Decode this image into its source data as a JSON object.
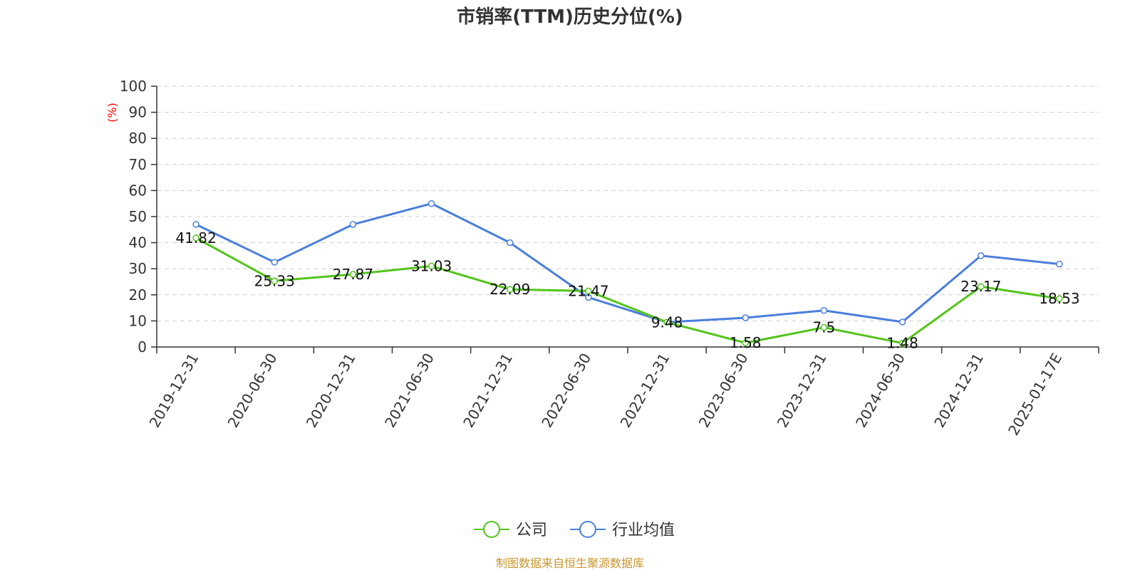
{
  "chart_data": {
    "type": "line",
    "title": "市销率(TTM)历史分位(%)",
    "ylabel": "(%)",
    "ylim": [
      0,
      100
    ],
    "yticks": [
      0,
      10,
      20,
      30,
      40,
      50,
      60,
      70,
      80,
      90,
      100
    ],
    "grid": true,
    "legend_position": "bottom",
    "categories": [
      "2019-12-31",
      "2020-06-30",
      "2020-12-31",
      "2021-06-30",
      "2021-12-31",
      "2022-06-30",
      "2022-12-31",
      "2023-06-30",
      "2023-12-31",
      "2024-06-30",
      "2024-12-31",
      "2025-01-17E"
    ],
    "series": [
      {
        "name": "公司",
        "color": "#52c41a",
        "values": [
          41.82,
          25.33,
          27.87,
          31.03,
          22.09,
          21.47,
          9.48,
          1.58,
          7.5,
          1.48,
          23.17,
          18.53
        ],
        "labels": [
          "41.82",
          "25.33",
          "27.87",
          "31.03",
          "22.09",
          "21.47",
          "9.48",
          "1.58",
          "7.5",
          "1.48",
          "23.17",
          "18.53"
        ],
        "show_labels": true
      },
      {
        "name": "行业均值",
        "color": "#4a7fdc",
        "values": [
          47.0,
          32.5,
          47.0,
          55.0,
          40.0,
          19.0,
          9.5,
          11.2,
          14.0,
          9.6,
          35.0,
          31.8
        ],
        "show_labels": false
      }
    ],
    "source": "制图数据来自恒生聚源数据库"
  },
  "colors": {
    "unit_label": "#ff0000",
    "source_text": "#c8962c",
    "grid": "#cccccc",
    "axis": "#333333"
  }
}
